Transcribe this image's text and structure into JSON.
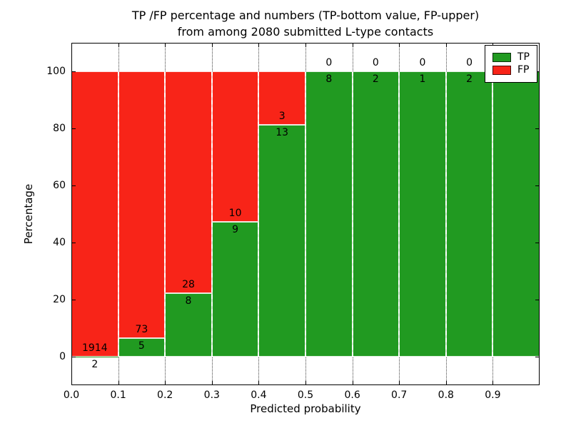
{
  "title": {
    "line1": "TP /FP percentage and numbers (TP-bottom value, FP-upper)",
    "line2": "from among 2080 submitted L-type contacts"
  },
  "axes": {
    "xlabel": "Predicted probability",
    "ylabel": "Percentage",
    "x_ticks": [
      {
        "value": 0.0,
        "label": "0.0"
      },
      {
        "value": 0.1,
        "label": "0.1"
      },
      {
        "value": 0.2,
        "label": "0.2"
      },
      {
        "value": 0.3,
        "label": "0.3"
      },
      {
        "value": 0.4,
        "label": "0.4"
      },
      {
        "value": 0.5,
        "label": "0.5"
      },
      {
        "value": 0.6,
        "label": "0.6"
      },
      {
        "value": 0.7,
        "label": "0.7"
      },
      {
        "value": 0.8,
        "label": "0.8"
      },
      {
        "value": 0.9,
        "label": "0.9"
      }
    ],
    "y_ticks": [
      {
        "value": 0,
        "label": "0"
      },
      {
        "value": 20,
        "label": "20"
      },
      {
        "value": 40,
        "label": "40"
      },
      {
        "value": 60,
        "label": "60"
      },
      {
        "value": 80,
        "label": "80"
      },
      {
        "value": 100,
        "label": "100"
      }
    ]
  },
  "legend": {
    "items": [
      {
        "label": "TP",
        "color": "#219a21"
      },
      {
        "label": "FP",
        "color": "#f82418"
      }
    ]
  },
  "chart_data": {
    "type": "bar",
    "stacked": true,
    "title": "TP /FP percentage and numbers (TP-bottom value, FP-upper)\nfrom among 2080 submitted L-type contacts",
    "xlabel": "Predicted probability",
    "ylabel": "Percentage",
    "xlim": [
      0.0,
      1.0
    ],
    "ylim": [
      -10,
      110
    ],
    "grid": true,
    "legend_position": "upper right",
    "total_submitted": 2080,
    "bin_width": 0.1,
    "bin_starts": [
      0.0,
      0.1,
      0.2,
      0.3,
      0.4,
      0.5,
      0.6,
      0.7,
      0.8,
      0.9
    ],
    "series": [
      {
        "name": "TP",
        "color": "#219a21",
        "counts": [
          2,
          5,
          8,
          9,
          13,
          8,
          2,
          1,
          2,
          2
        ]
      },
      {
        "name": "FP",
        "color": "#f82418",
        "counts": [
          1914,
          73,
          28,
          10,
          3,
          0,
          0,
          0,
          0,
          0
        ]
      }
    ],
    "tp_percent_by_bin": [
      0.1,
      6.4,
      22.2,
      47.4,
      81.2,
      100,
      100,
      100,
      100,
      100
    ]
  }
}
